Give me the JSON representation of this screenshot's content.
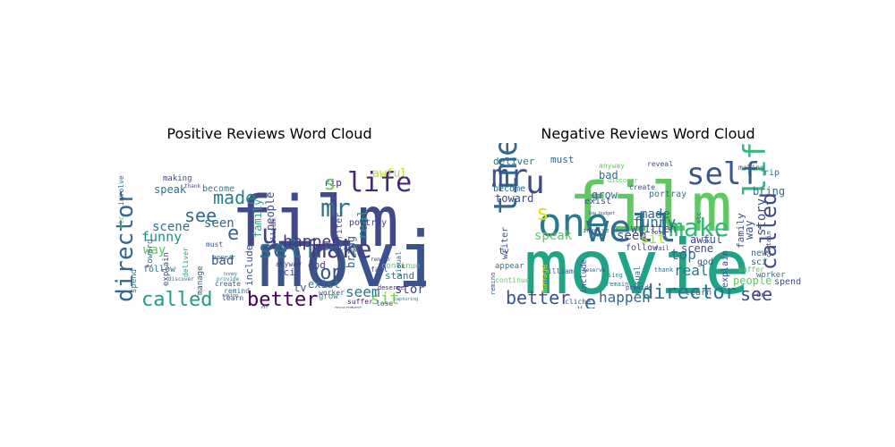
{
  "figure": {
    "background": "#ffffff",
    "colormap": "viridis"
  },
  "chart_data": [
    {
      "type": "wordcloud",
      "title": "Positive Reviews Word Cloud",
      "words": [
        {
          "text": "movie",
          "weight": 100,
          "color": "#3b528b"
        },
        {
          "text": "film",
          "weight": 92,
          "color": "#3e4a89"
        },
        {
          "text": "well",
          "weight": 62,
          "color": "#7ad151"
        },
        {
          "text": "time",
          "weight": 56,
          "color": "#38588c"
        },
        {
          "text": "one",
          "weight": 52,
          "color": "#3e4989"
        },
        {
          "text": "life",
          "weight": 40,
          "color": "#482878"
        },
        {
          "text": "self",
          "weight": 36,
          "color": "#2c728e"
        },
        {
          "text": "director",
          "weight": 34,
          "color": "#31688e"
        },
        {
          "text": "mr",
          "weight": 32,
          "color": "#2c728e"
        },
        {
          "text": "make",
          "weight": 30,
          "color": "#433e85"
        },
        {
          "text": "called",
          "weight": 28,
          "color": "#1f9e89"
        },
        {
          "text": "better",
          "weight": 28,
          "color": "#440154"
        },
        {
          "text": "top",
          "weight": 26,
          "color": "#3b528b"
        },
        {
          "text": "made",
          "weight": 24,
          "color": "#26828e"
        },
        {
          "text": "see",
          "weight": 24,
          "color": "#31688e"
        },
        {
          "text": "happen",
          "weight": 22,
          "color": "#46337e"
        },
        {
          "text": "sit",
          "weight": 20,
          "color": "#7ad151"
        },
        {
          "text": "seem",
          "weight": 20,
          "color": "#2a788e"
        },
        {
          "text": "funny",
          "weight": 18,
          "color": "#21918c"
        },
        {
          "text": "seen",
          "weight": 18,
          "color": "#31688e"
        },
        {
          "text": "bad",
          "weight": 18,
          "color": "#38588c"
        },
        {
          "text": "scene",
          "weight": 16,
          "color": "#2c728e"
        },
        {
          "text": "way",
          "weight": 16,
          "color": "#5ec962"
        },
        {
          "text": "story",
          "weight": 16,
          "color": "#3e4989"
        },
        {
          "text": "people",
          "weight": 16,
          "color": "#3e4989"
        },
        {
          "text": "real",
          "weight": 16,
          "color": "#1f9e89"
        },
        {
          "text": "awful",
          "weight": 15,
          "color": "#bddf26"
        },
        {
          "text": "speak",
          "weight": 14,
          "color": "#2c728e"
        },
        {
          "text": "family",
          "weight": 14,
          "color": "#22a884"
        },
        {
          "text": "exist",
          "weight": 12,
          "color": "#2a788e"
        },
        {
          "text": "bring",
          "weight": 12,
          "color": "#31688e"
        },
        {
          "text": "tv",
          "weight": 12,
          "color": "#3b528b"
        },
        {
          "text": "god",
          "weight": 11,
          "color": "#443983"
        },
        {
          "text": "rip",
          "weight": 11,
          "color": "#482878"
        },
        {
          "text": "stand",
          "weight": 11,
          "color": "#2a788e"
        },
        {
          "text": "sci",
          "weight": 10,
          "color": "#3e4989"
        },
        {
          "text": "include",
          "weight": 10,
          "color": "#3b528b"
        },
        {
          "text": "writer",
          "weight": 10,
          "color": "#38588c"
        },
        {
          "text": "portray",
          "weight": 10,
          "color": "#433e85"
        },
        {
          "text": "become",
          "weight": 10,
          "color": "#2a788e"
        },
        {
          "text": "follow",
          "weight": 10,
          "color": "#2c728e"
        },
        {
          "text": "explain",
          "weight": 10,
          "color": "#3e4989"
        },
        {
          "text": "contain",
          "weight": 10,
          "color": "#31688e"
        },
        {
          "text": "manage",
          "weight": 9,
          "color": "#38588c"
        },
        {
          "text": "continue",
          "weight": 9,
          "color": "#5ec962"
        },
        {
          "text": "grow",
          "weight": 9,
          "color": "#21918c"
        },
        {
          "text": "worker",
          "weight": 9,
          "color": "#3b528b"
        },
        {
          "text": "spend",
          "weight": 9,
          "color": "#2a788e"
        },
        {
          "text": "toward",
          "weight": 9,
          "color": "#31688e"
        },
        {
          "text": "making",
          "weight": 9,
          "color": "#3e4989"
        },
        {
          "text": "suffer",
          "weight": 8,
          "color": "#481f70"
        },
        {
          "text": "learn",
          "weight": 8,
          "color": "#3b528b"
        },
        {
          "text": "remind",
          "weight": 8,
          "color": "#2c728e"
        },
        {
          "text": "anyway",
          "weight": 8,
          "color": "#443983"
        },
        {
          "text": "deliver",
          "weight": 8,
          "color": "#1f9e89"
        },
        {
          "text": "ask",
          "weight": 8,
          "color": "#31688e"
        },
        {
          "text": "fail",
          "weight": 8,
          "color": "#3e4989"
        },
        {
          "text": "lose",
          "weight": 8,
          "color": "#3b528b"
        },
        {
          "text": "visual",
          "weight": 8,
          "color": "#2a788e"
        },
        {
          "text": "william",
          "weight": 8,
          "color": "#433e85"
        },
        {
          "text": "must",
          "weight": 8,
          "color": "#3b528b"
        },
        {
          "text": "create",
          "weight": 8,
          "color": "#38588c"
        },
        {
          "text": "deserve",
          "weight": 7,
          "color": "#482878"
        },
        {
          "text": "involve",
          "weight": 7,
          "color": "#2c728e"
        },
        {
          "text": "etc",
          "weight": 7,
          "color": "#5ec962"
        },
        {
          "text": "ok",
          "weight": 7,
          "color": "#31688e"
        },
        {
          "text": "dr",
          "weight": 7,
          "color": "#3e4989"
        },
        {
          "text": "appear",
          "weight": 7,
          "color": "#2a788e"
        },
        {
          "text": "provide",
          "weight": 6,
          "color": "#21918c"
        },
        {
          "text": "discover",
          "weight": 6,
          "color": "#31688e"
        },
        {
          "text": "thank",
          "weight": 6,
          "color": "#3b528b"
        },
        {
          "text": "remain",
          "weight": 6,
          "color": "#3e4989"
        },
        {
          "text": "government",
          "weight": 5,
          "color": "#38588c"
        },
        {
          "text": "capturing",
          "weight": 5,
          "color": "#2a788e"
        },
        {
          "text": "taking",
          "weight": 5,
          "color": "#3b528b"
        },
        {
          "text": "honey",
          "weight": 5,
          "color": "#31688e"
        },
        {
          "text": "u",
          "weight": 30,
          "color": "#3e4989"
        },
        {
          "text": "s",
          "weight": 22,
          "color": "#5ec962"
        },
        {
          "text": "e",
          "weight": 22,
          "color": "#31688e"
        }
      ]
    },
    {
      "type": "wordcloud",
      "title": "Negative Reviews Word Cloud",
      "words": [
        {
          "text": "movie",
          "weight": 100,
          "color": "#20a386"
        },
        {
          "text": "film",
          "weight": 92,
          "color": "#5ec962"
        },
        {
          "text": "one",
          "weight": 54,
          "color": "#2a788e"
        },
        {
          "text": "well",
          "weight": 50,
          "color": "#2c728e"
        },
        {
          "text": "time",
          "weight": 48,
          "color": "#31688e"
        },
        {
          "text": "life",
          "weight": 44,
          "color": "#35b779"
        },
        {
          "text": "mr",
          "weight": 40,
          "color": "#3b528b"
        },
        {
          "text": "self",
          "weight": 36,
          "color": "#38588c"
        },
        {
          "text": "make",
          "weight": 34,
          "color": "#35b779"
        },
        {
          "text": "called",
          "weight": 32,
          "color": "#3e4989"
        },
        {
          "text": "director",
          "weight": 30,
          "color": "#2c728e"
        },
        {
          "text": "better",
          "weight": 28,
          "color": "#3b528b"
        },
        {
          "text": "see",
          "weight": 26,
          "color": "#3e4989"
        },
        {
          "text": "happen",
          "weight": 22,
          "color": "#31688e"
        },
        {
          "text": "real",
          "weight": 20,
          "color": "#2a788e"
        },
        {
          "text": "top",
          "weight": 20,
          "color": "#2c728e"
        },
        {
          "text": "funny",
          "weight": 20,
          "color": "#2c728e"
        },
        {
          "text": "seen",
          "weight": 18,
          "color": "#3e4989"
        },
        {
          "text": "made",
          "weight": 18,
          "color": "#31688e"
        },
        {
          "text": "story",
          "weight": 18,
          "color": "#3b528b"
        },
        {
          "text": "sit",
          "weight": 18,
          "color": "#bddf26"
        },
        {
          "text": "speak",
          "weight": 16,
          "color": "#5ec962"
        },
        {
          "text": "written",
          "weight": 16,
          "color": "#3b528b"
        },
        {
          "text": "scene",
          "weight": 16,
          "color": "#3e4989"
        },
        {
          "text": "toward",
          "weight": 16,
          "color": "#3e4989"
        },
        {
          "text": "bad",
          "weight": 16,
          "color": "#31688e"
        },
        {
          "text": "people",
          "weight": 16,
          "color": "#5ec962"
        },
        {
          "text": "family",
          "weight": 15,
          "color": "#3e4989"
        },
        {
          "text": "awful",
          "weight": 14,
          "color": "#3e4989"
        },
        {
          "text": "way",
          "weight": 14,
          "color": "#3b528b"
        },
        {
          "text": "bring",
          "weight": 14,
          "color": "#2c728e"
        },
        {
          "text": "grow",
          "weight": 13,
          "color": "#31688e"
        },
        {
          "text": "deliver",
          "weight": 12,
          "color": "#2a788e"
        },
        {
          "text": "explain",
          "weight": 12,
          "color": "#3e4989"
        },
        {
          "text": "writer",
          "weight": 12,
          "color": "#3b528b"
        },
        {
          "text": "portray",
          "weight": 12,
          "color": "#2a788e"
        },
        {
          "text": "must",
          "weight": 12,
          "color": "#31688e"
        },
        {
          "text": "follow",
          "weight": 12,
          "color": "#3e4989"
        },
        {
          "text": "exist",
          "weight": 11,
          "color": "#3b528b"
        },
        {
          "text": "learn",
          "weight": 11,
          "color": "#2c728e"
        },
        {
          "text": "become",
          "weight": 11,
          "color": "#31688e"
        },
        {
          "text": "new",
          "weight": 11,
          "color": "#31688e"
        },
        {
          "text": "tv",
          "weight": 10,
          "color": "#3e4989"
        },
        {
          "text": "rip",
          "weight": 10,
          "color": "#2a788e"
        },
        {
          "text": "god",
          "weight": 10,
          "color": "#3b528b"
        },
        {
          "text": "sci",
          "weight": 10,
          "color": "#31688e"
        },
        {
          "text": "spend",
          "weight": 10,
          "color": "#3e4989"
        },
        {
          "text": "worker",
          "weight": 10,
          "color": "#2c728e"
        },
        {
          "text": "visual",
          "weight": 10,
          "color": "#31688e"
        },
        {
          "text": "include",
          "weight": 10,
          "color": "#3b528b"
        },
        {
          "text": "making",
          "weight": 9,
          "color": "#31688e"
        },
        {
          "text": "suffer",
          "weight": 9,
          "color": "#5ec962"
        },
        {
          "text": "contain",
          "weight": 9,
          "color": "#3e4989"
        },
        {
          "text": "continue",
          "weight": 9,
          "color": "#5ec962"
        },
        {
          "text": "william",
          "weight": 9,
          "color": "#31688e"
        },
        {
          "text": "manage",
          "weight": 9,
          "color": "#bddf26"
        },
        {
          "text": "appear",
          "weight": 9,
          "color": "#2c728e"
        },
        {
          "text": "create",
          "weight": 8,
          "color": "#3e4989"
        },
        {
          "text": "reveal",
          "weight": 8,
          "color": "#3b528b"
        },
        {
          "text": "anyway",
          "weight": 8,
          "color": "#5ec962"
        },
        {
          "text": "thank",
          "weight": 8,
          "color": "#31688e"
        },
        {
          "text": "remain",
          "weight": 8,
          "color": "#2a788e"
        },
        {
          "text": "discover",
          "weight": 8,
          "color": "#5ec962"
        },
        {
          "text": "involve",
          "weight": 8,
          "color": "#3e4989"
        },
        {
          "text": "remind",
          "weight": 7,
          "color": "#3b528b"
        },
        {
          "text": "ok",
          "weight": 7,
          "color": "#3e4989"
        },
        {
          "text": "dr",
          "weight": 7,
          "color": "#3e4989"
        },
        {
          "text": "etc",
          "weight": 7,
          "color": "#2c728e"
        },
        {
          "text": "cliche",
          "weight": 7,
          "color": "#3b528b"
        },
        {
          "text": "sing",
          "weight": 7,
          "color": "#2a788e"
        },
        {
          "text": "fail",
          "weight": 7,
          "color": "#3e4989"
        },
        {
          "text": "lose",
          "weight": 7,
          "color": "#3b528b"
        },
        {
          "text": "provide",
          "weight": 6,
          "color": "#3e4989"
        },
        {
          "text": "deserve",
          "weight": 6,
          "color": "#3b528b"
        },
        {
          "text": "low budget",
          "weight": 5,
          "color": "#3b528b"
        },
        {
          "text": "u",
          "weight": 36,
          "color": "#3e4989"
        },
        {
          "text": "s",
          "weight": 24,
          "color": "#dde318"
        },
        {
          "text": "e",
          "weight": 22,
          "color": "#31688e"
        },
        {
          "text": "v",
          "weight": 10,
          "color": "#3e4989"
        }
      ]
    }
  ]
}
